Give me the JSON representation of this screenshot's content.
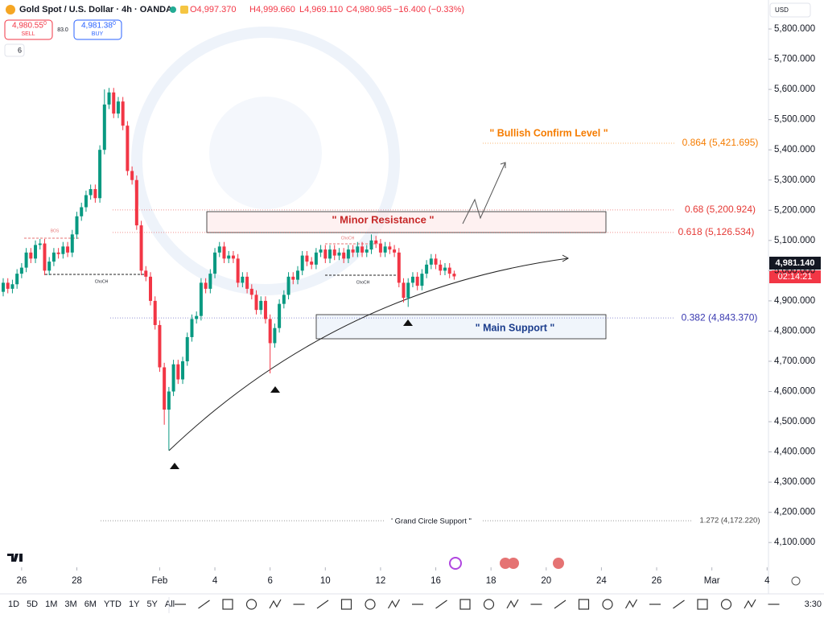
{
  "header": {
    "symbol": "Gold Spot / U.S. Dollar · 4h · OANDA",
    "open": "O4,997.370",
    "high": "H4,999.660",
    "low": "L4,969.110",
    "close": "C4,980.965",
    "change": "−16.400 (−0.33%)",
    "sell_price": "4,980.55",
    "sell_sup": "0",
    "sell_label": "SELL",
    "spread": "83.0",
    "buy_price": "4,981.38",
    "buy_sup": "0",
    "buy_label": "BUY",
    "indicators": "6",
    "currency": "USD",
    "last_price": "4,981.140",
    "countdown": "02:14:21"
  },
  "chart_data": {
    "type": "candlestick",
    "up_color": "#089981",
    "down_color": "#f23645",
    "open": [
      4930,
      4960,
      4940,
      4955,
      4990,
      5010,
      5060,
      5040,
      5085,
      5090,
      5000,
      5030,
      5060,
      5055,
      5080,
      5060,
      5120,
      5180,
      5210,
      5250,
      5270,
      5240,
      5400,
      5550,
      5590,
      5520,
      5560,
      5480,
      5330,
      5300,
      5150,
      5000,
      4980,
      4900,
      4820,
      4680,
      4540,
      4600,
      4690,
      4640,
      4700,
      4780,
      4840,
      4850,
      4960,
      4940,
      4990,
      5060,
      5080,
      5040,
      5050,
      5040,
      4960,
      4980,
      4940,
      4920,
      4870,
      4900,
      4840,
      4760,
      4810,
      4890,
      4920,
      4980,
      4970,
      5000,
      5050,
      5030,
      5020,
      5060,
      5070,
      5040,
      5070,
      5050,
      5060,
      5040,
      5070,
      5060,
      5080,
      5060,
      5070,
      5100,
      5090,
      5060,
      5080,
      5070,
      5060,
      4960,
      4910,
      4960,
      4980,
      4950,
      4990,
      5020,
      5040,
      5020,
      5000,
      5010,
      4990
    ],
    "high": [
      4975,
      4975,
      4970,
      5005,
      5025,
      5075,
      5075,
      5100,
      5105,
      5105,
      5045,
      5075,
      5075,
      5095,
      5095,
      5135,
      5195,
      5225,
      5265,
      5285,
      5285,
      5415,
      5600,
      5605,
      5605,
      5575,
      5575,
      5495,
      5345,
      5315,
      5165,
      5015,
      4995,
      4915,
      4835,
      4695,
      4615,
      4705,
      4705,
      4715,
      4795,
      4855,
      4865,
      4975,
      4975,
      5005,
      5075,
      5095,
      5095,
      5065,
      5065,
      5055,
      4995,
      4995,
      4955,
      4935,
      4915,
      4915,
      4855,
      4825,
      4905,
      4935,
      4995,
      4995,
      5015,
      5065,
      5065,
      5045,
      5075,
      5085,
      5085,
      5085,
      5085,
      5075,
      5075,
      5085,
      5085,
      5095,
      5095,
      5085,
      5120,
      5115,
      5105,
      5095,
      5095,
      5085,
      5075,
      4975,
      4975,
      4995,
      4995,
      5005,
      5035,
      5055,
      5055,
      5035,
      5025,
      5025,
      5000
    ],
    "low": [
      4915,
      4925,
      4925,
      4940,
      4975,
      4995,
      5025,
      5025,
      5070,
      4985,
      4985,
      5015,
      5040,
      5040,
      5045,
      5045,
      5105,
      5165,
      5195,
      5235,
      5225,
      5225,
      5385,
      5535,
      5505,
      5505,
      5465,
      5315,
      5285,
      5135,
      4985,
      4965,
      4885,
      4805,
      4665,
      4490,
      4405,
      4585,
      4625,
      4625,
      4685,
      4765,
      4825,
      4835,
      4925,
      4925,
      4975,
      5045,
      5025,
      5025,
      5025,
      4945,
      4945,
      4925,
      4905,
      4855,
      4855,
      4825,
      4660,
      4745,
      4795,
      4875,
      4905,
      4955,
      4955,
      4985,
      5015,
      5005,
      5005,
      5045,
      5025,
      5025,
      5035,
      5035,
      5025,
      5025,
      5045,
      5045,
      5045,
      5045,
      5055,
      5075,
      5045,
      5045,
      5055,
      5045,
      4945,
      4895,
      4880,
      4945,
      4935,
      4935,
      4975,
      5005,
      5005,
      4985,
      4985,
      4975,
      4970
    ],
    "close": [
      4960,
      4940,
      4955,
      4990,
      5010,
      5060,
      5040,
      5085,
      5090,
      5000,
      5030,
      5060,
      5055,
      5080,
      5060,
      5120,
      5180,
      5210,
      5250,
      5270,
      5240,
      5400,
      5550,
      5590,
      5520,
      5560,
      5480,
      5330,
      5300,
      5150,
      5000,
      4980,
      4900,
      4820,
      4680,
      4540,
      4600,
      4690,
      4640,
      4700,
      4780,
      4840,
      4850,
      4960,
      4940,
      4990,
      5060,
      5080,
      5040,
      5050,
      5040,
      4960,
      4980,
      4940,
      4920,
      4870,
      4900,
      4840,
      4760,
      4810,
      4890,
      4920,
      4980,
      4970,
      5000,
      5050,
      5030,
      5020,
      5060,
      5070,
      5040,
      5070,
      5050,
      5060,
      5040,
      5070,
      5060,
      5080,
      5060,
      5070,
      5100,
      5090,
      5060,
      5080,
      5070,
      5060,
      4960,
      4910,
      4960,
      4980,
      4950,
      4990,
      5020,
      5040,
      5020,
      5000,
      5010,
      4990,
      4981
    ],
    "xlim": [
      0,
      167
    ],
    "xticks": [
      {
        "value": 4,
        "label": "26"
      },
      {
        "value": 16,
        "label": "28"
      },
      {
        "value": 34,
        "label": "Feb"
      },
      {
        "value": 46,
        "label": "4"
      },
      {
        "value": 58,
        "label": "6"
      },
      {
        "value": 70,
        "label": "10"
      },
      {
        "value": 82,
        "label": "12"
      },
      {
        "value": 94,
        "label": "16"
      },
      {
        "value": 106,
        "label": "18"
      },
      {
        "value": 118,
        "label": "20"
      },
      {
        "value": 130,
        "label": "24"
      },
      {
        "value": 142,
        "label": "26"
      },
      {
        "value": 154,
        "label": "Mar"
      },
      {
        "value": 166,
        "label": "4"
      }
    ],
    "ylim": [
      4018,
      5896
    ],
    "yticks": [
      {
        "value": 5800,
        "label": "5,800.000"
      },
      {
        "value": 5700,
        "label": "5,700.000"
      },
      {
        "value": 5600,
        "label": "5,600.000"
      },
      {
        "value": 5500,
        "label": "5,500.000"
      },
      {
        "value": 5400,
        "label": "5,400.000"
      },
      {
        "value": 5300,
        "label": "5,300.000"
      },
      {
        "value": 5200,
        "label": "5,200.000"
      },
      {
        "value": 5100,
        "label": "5,100.000"
      },
      {
        "value": 5000,
        "label": "5,000.000"
      },
      {
        "value": 4900,
        "label": "4,900.000"
      },
      {
        "value": 4800,
        "label": "4,800.000"
      },
      {
        "value": 4700,
        "label": "4,700.000"
      },
      {
        "value": 4600,
        "label": "4,600.000"
      },
      {
        "value": 4500,
        "label": "4,500.000"
      },
      {
        "value": 4400,
        "label": "4,400.000"
      },
      {
        "value": 4300,
        "label": "4,300.000"
      },
      {
        "value": 4200,
        "label": "4,200.000"
      },
      {
        "value": 4100,
        "label": "4,100.000"
      }
    ],
    "levels": [
      {
        "value": 5421.695,
        "label": "0.864 (5,421.695)",
        "color": "#f57c00"
      },
      {
        "value": 5200.924,
        "label": "0.68 (5,200.924)",
        "color": "#e53935"
      },
      {
        "value": 5126.534,
        "label": "0.618 (5,126.534)",
        "color": "#e53935"
      },
      {
        "value": 4843.37,
        "label": "0.382 (4,843.370)",
        "color": "#3838b0"
      },
      {
        "value": 4172.22,
        "label": "1.272 (4,172.220)",
        "color": "#444444"
      }
    ],
    "annotations": [
      "\" Bullish Confirm Level \"",
      "\" Minor Resistance \"",
      "\" Main Support  \"",
      "' Grand Circle Support \"",
      "ChoCH",
      "ChoCH",
      "ChoCH",
      "BOS"
    ]
  },
  "toolbar": {
    "timeframes": [
      "1D",
      "5D",
      "1M",
      "3M",
      "6M",
      "YTD",
      "1Y",
      "5Y",
      "All"
    ],
    "time": "3:30"
  }
}
